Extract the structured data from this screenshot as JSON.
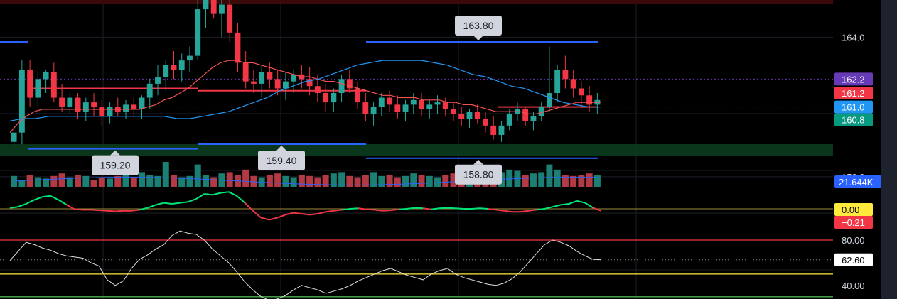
{
  "chart_data": {
    "type": "candlestick",
    "price_axis": {
      "ticks": [
        164.0,
        158.0
      ],
      "tick_labels": [
        "164.0",
        "158.0"
      ],
      "range": [
        157.6,
        165.6
      ]
    },
    "candles": [
      [
        159.5,
        159.9,
        159.3,
        159.9
      ],
      [
        159.9,
        163.0,
        159.4,
        162.6
      ],
      [
        162.6,
        163.0,
        161.0,
        161.4
      ],
      [
        161.4,
        162.5,
        161.0,
        162.2
      ],
      [
        162.2,
        162.6,
        161.6,
        162.5
      ],
      [
        162.5,
        162.9,
        161.2,
        161.4
      ],
      [
        161.4,
        162.0,
        160.8,
        161.0
      ],
      [
        161.0,
        161.6,
        160.7,
        161.4
      ],
      [
        161.4,
        161.6,
        160.5,
        160.8
      ],
      [
        160.8,
        161.4,
        160.4,
        161.2
      ],
      [
        161.2,
        161.6,
        160.6,
        161.0
      ],
      [
        161.0,
        161.3,
        160.2,
        160.6
      ],
      [
        160.6,
        161.2,
        160.3,
        161.0
      ],
      [
        161.0,
        161.4,
        160.6,
        160.8
      ],
      [
        160.8,
        161.3,
        160.5,
        161.1
      ],
      [
        161.1,
        161.4,
        160.6,
        160.9
      ],
      [
        160.9,
        161.5,
        160.5,
        161.4
      ],
      [
        161.4,
        162.2,
        160.9,
        162.0
      ],
      [
        162.0,
        162.8,
        161.5,
        162.3
      ],
      [
        162.3,
        163.0,
        161.7,
        162.8
      ],
      [
        162.8,
        163.4,
        162.2,
        162.6
      ],
      [
        162.6,
        163.3,
        162.1,
        163.0
      ],
      [
        163.0,
        163.6,
        162.5,
        163.2
      ],
      [
        163.2,
        165.6,
        163.0,
        165.2
      ],
      [
        165.2,
        165.8,
        164.4,
        165.6
      ],
      [
        165.6,
        166.0,
        164.8,
        165.0
      ],
      [
        165.0,
        165.8,
        164.0,
        165.4
      ],
      [
        165.4,
        165.6,
        163.8,
        164.2
      ],
      [
        164.2,
        164.6,
        162.5,
        162.9
      ],
      [
        162.9,
        163.4,
        161.8,
        162.1
      ],
      [
        162.1,
        162.6,
        161.6,
        162.0
      ],
      [
        162.0,
        162.8,
        161.4,
        162.5
      ],
      [
        162.5,
        162.9,
        161.8,
        162.2
      ],
      [
        162.2,
        162.6,
        161.5,
        161.8
      ],
      [
        161.8,
        162.5,
        161.3,
        162.1
      ],
      [
        162.1,
        162.6,
        161.6,
        162.4
      ],
      [
        162.4,
        162.8,
        161.8,
        162.2
      ],
      [
        162.2,
        162.7,
        161.5,
        161.9
      ],
      [
        161.9,
        162.4,
        161.2,
        161.6
      ],
      [
        161.6,
        162.0,
        160.8,
        161.2
      ],
      [
        161.2,
        161.8,
        160.8,
        161.6
      ],
      [
        161.6,
        162.4,
        161.2,
        162.2
      ],
      [
        162.2,
        162.6,
        161.6,
        161.8
      ],
      [
        161.8,
        162.1,
        160.9,
        161.2
      ],
      [
        161.2,
        161.6,
        160.4,
        160.7
      ],
      [
        160.7,
        161.2,
        160.2,
        161.0
      ],
      [
        161.0,
        161.6,
        160.6,
        161.4
      ],
      [
        161.4,
        161.7,
        160.8,
        161.1
      ],
      [
        161.1,
        161.5,
        160.5,
        160.8
      ],
      [
        160.8,
        161.3,
        160.4,
        161.1
      ],
      [
        161.1,
        161.6,
        160.7,
        161.3
      ],
      [
        161.3,
        161.6,
        160.6,
        160.9
      ],
      [
        160.9,
        161.3,
        160.5,
        161.1
      ],
      [
        161.1,
        161.5,
        160.7,
        161.2
      ],
      [
        161.2,
        161.4,
        160.6,
        160.9
      ],
      [
        160.9,
        161.2,
        160.4,
        160.7
      ],
      [
        160.7,
        161.0,
        160.2,
        160.5
      ],
      [
        160.5,
        160.9,
        160.1,
        160.8
      ],
      [
        160.8,
        161.1,
        160.3,
        160.5
      ],
      [
        160.5,
        160.8,
        159.9,
        160.2
      ],
      [
        160.2,
        160.6,
        159.6,
        159.8
      ],
      [
        159.8,
        160.4,
        159.5,
        160.2
      ],
      [
        160.2,
        160.9,
        160.0,
        160.7
      ],
      [
        160.7,
        161.2,
        160.4,
        160.9
      ],
      [
        160.9,
        161.0,
        160.2,
        160.4
      ],
      [
        160.4,
        160.8,
        160.0,
        160.6
      ],
      [
        160.6,
        161.2,
        160.4,
        161.0
      ],
      [
        161.0,
        163.6,
        160.8,
        161.6
      ],
      [
        161.6,
        162.8,
        161.2,
        162.6
      ],
      [
        162.6,
        163.2,
        161.8,
        162.2
      ],
      [
        162.2,
        162.6,
        161.4,
        161.8
      ],
      [
        161.8,
        162.1,
        161.0,
        161.5
      ],
      [
        161.5,
        161.9,
        160.8,
        161.1
      ],
      [
        161.1,
        161.6,
        160.7,
        161.3
      ]
    ],
    "ma_red": [
      159.9,
      160.3,
      160.6,
      160.8,
      160.9,
      160.9,
      160.9,
      160.9,
      160.9,
      160.9,
      160.9,
      160.9,
      160.9,
      160.9,
      160.9,
      160.9,
      160.9,
      161.0,
      161.1,
      161.3,
      161.4,
      161.6,
      161.8,
      162.1,
      162.4,
      162.7,
      162.9,
      163.0,
      163.0,
      162.9,
      162.9,
      162.8,
      162.7,
      162.6,
      162.5,
      162.4,
      162.3,
      162.3,
      162.2,
      162.1,
      162.1,
      162.0,
      161.9,
      161.8,
      161.7,
      161.6,
      161.5,
      161.5,
      161.4,
      161.4,
      161.4,
      161.3,
      161.3,
      161.3,
      161.2,
      161.2,
      161.1,
      161.1,
      161.0,
      160.9,
      160.8,
      160.8,
      160.8,
      160.8,
      160.7,
      160.7,
      160.8,
      160.9,
      161.0,
      161.1,
      161.2,
      161.2,
      161.2,
      161.2
    ],
    "ma_blue": [
      160.4,
      160.5,
      160.5,
      160.6,
      160.6,
      160.6,
      160.6,
      160.6,
      160.6,
      160.6,
      160.6,
      160.6,
      160.6,
      160.5,
      160.5,
      160.6,
      160.7,
      160.8,
      161.0,
      161.2,
      161.4,
      161.7,
      161.9,
      162.1,
      162.2,
      162.4,
      162.6,
      162.8,
      162.9,
      163.0,
      163.0,
      163.0,
      163.0,
      162.9,
      162.8,
      162.6,
      162.4,
      162.3,
      162.1,
      161.9,
      161.8,
      161.6,
      161.4,
      161.2,
      161.1,
      161.0,
      161.0
    ],
    "horizontal_levels": [
      {
        "type": "resistance",
        "price": 161.8,
        "color": "#f23645"
      },
      {
        "type": "resistance",
        "price": 161.7,
        "color": "#f23645"
      },
      {
        "type": "support",
        "price": 159.2,
        "color": "#2962ff"
      },
      {
        "type": "support",
        "price": 159.4,
        "color": "#2962ff"
      },
      {
        "type": "resistance",
        "price": 163.8,
        "color": "#2962ff"
      },
      {
        "type": "support",
        "price": 158.8,
        "color": "#2962ff"
      },
      {
        "type": "price",
        "price": 161.0,
        "color": "#f23645"
      }
    ],
    "callouts": [
      {
        "label": "163.80",
        "price": 163.8,
        "pointer": "down"
      },
      {
        "label": "159.20",
        "price": 159.2,
        "pointer": "up"
      },
      {
        "label": "159.40",
        "price": 159.4,
        "pointer": "up"
      },
      {
        "label": "158.80",
        "price": 158.8,
        "pointer": "up"
      }
    ],
    "price_badges": [
      {
        "label": "162.2",
        "price": 162.2,
        "color": "#673ab7",
        "text_color": "#ffffff"
      },
      {
        "label": "161.2",
        "price": 161.2,
        "color": "#f23645",
        "text_color": "#ffffff"
      },
      {
        "label": "161.0",
        "price": 161.0,
        "color": "#2196f3",
        "text_color": "#ffffff"
      },
      {
        "label": "160.8",
        "price": 160.8,
        "color": "#089981",
        "text_color": "#ffffff"
      }
    ],
    "green_zone": {
      "from": 158.9,
      "to": 159.4
    },
    "volume": {
      "badge": "21.644K",
      "badge_color": "#2962ff",
      "values": [
        0.45,
        0.3,
        0.5,
        0.4,
        0.35,
        0.45,
        0.55,
        0.4,
        0.5,
        0.45,
        0.3,
        0.4,
        0.35,
        0.45,
        0.5,
        0.4,
        0.6,
        0.5,
        0.45,
        1.0,
        0.5,
        0.4,
        0.45,
        0.9,
        0.5,
        0.4,
        0.55,
        0.6,
        0.5,
        0.7,
        0.45,
        0.4,
        0.5,
        0.55,
        0.45,
        0.4,
        0.5,
        0.45,
        0.4,
        0.5,
        0.55,
        0.6,
        0.45,
        0.4,
        0.5,
        0.6,
        0.45,
        0.5,
        0.4,
        0.45,
        0.55,
        0.5,
        0.45,
        0.4,
        0.5,
        0.55,
        0.6,
        0.45,
        0.4,
        0.5,
        0.55,
        0.6,
        0.7,
        0.65,
        0.5,
        0.55,
        0.6,
        0.9,
        0.7,
        0.5,
        0.45,
        0.5,
        0.55,
        0.5
      ]
    },
    "oscillator1": {
      "badges": [
        {
          "label": "0.00",
          "color": "#ffeb3b",
          "text_color": "#000000"
        },
        {
          "label": "−0.21",
          "color": "#f23645",
          "text_color": "#ffffff"
        }
      ],
      "values": [
        0.1,
        0.2,
        0.5,
        0.9,
        1.2,
        1.3,
        0.9,
        0.4,
        -0.05,
        -0.1,
        -0.1,
        -0.15,
        -0.2,
        -0.25,
        -0.2,
        -0.2,
        -0.1,
        0.1,
        0.4,
        0.6,
        0.5,
        0.6,
        0.7,
        1.0,
        1.5,
        1.4,
        1.6,
        1.7,
        1.3,
        0.6,
        -0.2,
        -0.9,
        -1.1,
        -0.9,
        -0.6,
        -0.4,
        -0.5,
        -0.6,
        -0.5,
        -0.3,
        -0.2,
        -0.1,
        0.0,
        0.05,
        -0.05,
        -0.1,
        -0.2,
        -0.15,
        -0.05,
        0.0,
        0.1,
        0.05,
        -0.05,
        0.05,
        0.1,
        0.05,
        0.0,
        0.0,
        0.05,
        0.0,
        -0.1,
        -0.2,
        -0.3,
        -0.3,
        -0.2,
        -0.1,
        0.0,
        0.2,
        0.4,
        0.5,
        0.8,
        0.6,
        0.1,
        -0.21
      ]
    },
    "oscillator2": {
      "ticks": [
        80.0,
        40.0
      ],
      "tick_labels": [
        "80.00",
        "40.00"
      ],
      "range": [
        28,
        90
      ],
      "levels": [
        {
          "value": 80,
          "color": "#f23645"
        },
        {
          "value": 50,
          "color": "#ffeb3b"
        },
        {
          "value": 30,
          "color": "#4caf50"
        }
      ],
      "badge": {
        "label": "62.60",
        "color": "#ffffff",
        "text_color": "#000000"
      },
      "values": [
        62,
        70,
        78,
        76,
        73,
        71,
        68,
        66,
        65,
        64,
        60,
        57,
        45,
        40,
        44,
        55,
        63,
        67,
        72,
        76,
        84,
        88,
        86,
        85,
        80,
        72,
        66,
        60,
        52,
        43,
        36,
        30,
        27,
        28,
        31,
        36,
        40,
        38,
        36,
        33,
        35,
        37,
        40,
        44,
        47,
        50,
        53,
        55,
        52,
        49,
        47,
        45,
        50,
        53,
        55,
        50,
        47,
        45,
        43,
        41,
        40,
        42,
        46,
        52,
        60,
        68,
        76,
        80,
        78,
        75,
        70,
        66,
        63,
        62.6
      ]
    }
  }
}
